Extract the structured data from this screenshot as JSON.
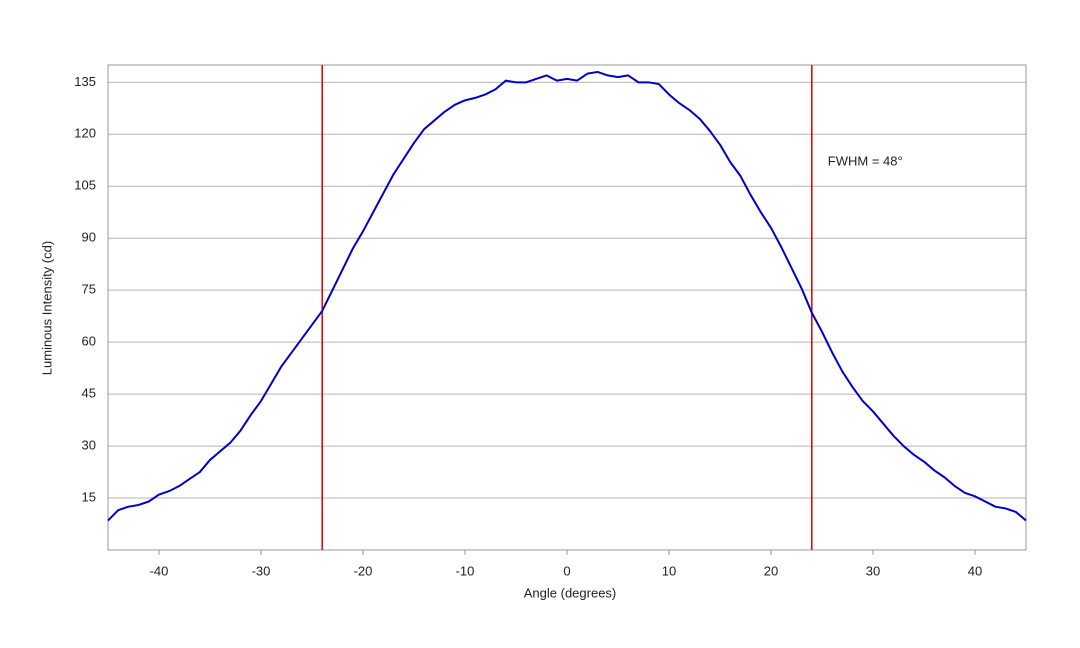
{
  "chart_data": {
    "type": "line",
    "x_label": "Angle (degrees)",
    "y_label": "Luminous Intensity (cd)",
    "annotation": "FWHM = 48°",
    "xlim": [
      -45,
      45
    ],
    "ylim": [
      0,
      140
    ],
    "xticks": [
      -40,
      -30,
      -20,
      -10,
      0,
      10,
      20,
      30,
      40
    ],
    "yticks": [
      15,
      30,
      45,
      60,
      75,
      90,
      105,
      120,
      135
    ],
    "grid": true,
    "vlines": [
      -24,
      24
    ],
    "vline_color": "#dd0000",
    "x": [
      -45,
      -44,
      -43,
      -42,
      -41,
      -40,
      -39,
      -38,
      -37,
      -36,
      -35,
      -34,
      -33,
      -32,
      -31,
      -30,
      -29,
      -28,
      -27,
      -26,
      -25,
      -24,
      -23,
      -22,
      -21,
      -20,
      -19,
      -18,
      -17,
      -16,
      -15,
      -14,
      -13,
      -12,
      -11,
      -10,
      -9,
      -8,
      -7,
      -6,
      -5,
      -4,
      -3,
      -2,
      -1,
      0,
      1,
      2,
      3,
      4,
      5,
      6,
      7,
      8,
      9,
      10,
      11,
      12,
      13,
      14,
      15,
      16,
      17,
      18,
      19,
      20,
      21,
      22,
      23,
      24,
      25,
      26,
      27,
      28,
      29,
      30,
      31,
      32,
      33,
      34,
      35,
      36,
      37,
      38,
      39,
      40,
      41,
      42,
      43,
      44,
      45
    ],
    "series": [
      {
        "color": "#0000cc",
        "values": [
          8.5,
          11.5,
          12.5,
          13,
          14,
          16,
          17,
          18.5,
          20.5,
          22.5,
          26,
          28.5,
          31,
          34.5,
          39,
          43,
          48,
          53,
          57,
          61,
          65,
          69,
          75,
          81,
          87,
          92,
          97.5,
          103,
          108.5,
          113,
          117.5,
          121.5,
          124,
          126.5,
          128.5,
          129.8,
          130.5,
          131.5,
          133,
          135.5,
          135,
          135,
          136,
          137,
          135.5,
          136,
          135.5,
          137.5,
          138,
          137,
          136.5,
          137,
          135,
          135,
          134.5,
          131.5,
          129,
          127,
          124.5,
          121,
          117,
          112,
          108,
          102.5,
          97.5,
          93,
          87.5,
          81.5,
          75.5,
          68.5,
          63,
          57,
          51.5,
          47,
          43,
          40,
          36.5,
          33,
          30,
          27.5,
          25.5,
          23,
          21,
          18.5,
          16.5,
          15.5,
          14,
          12.5,
          12,
          11,
          8.5
        ]
      }
    ]
  }
}
